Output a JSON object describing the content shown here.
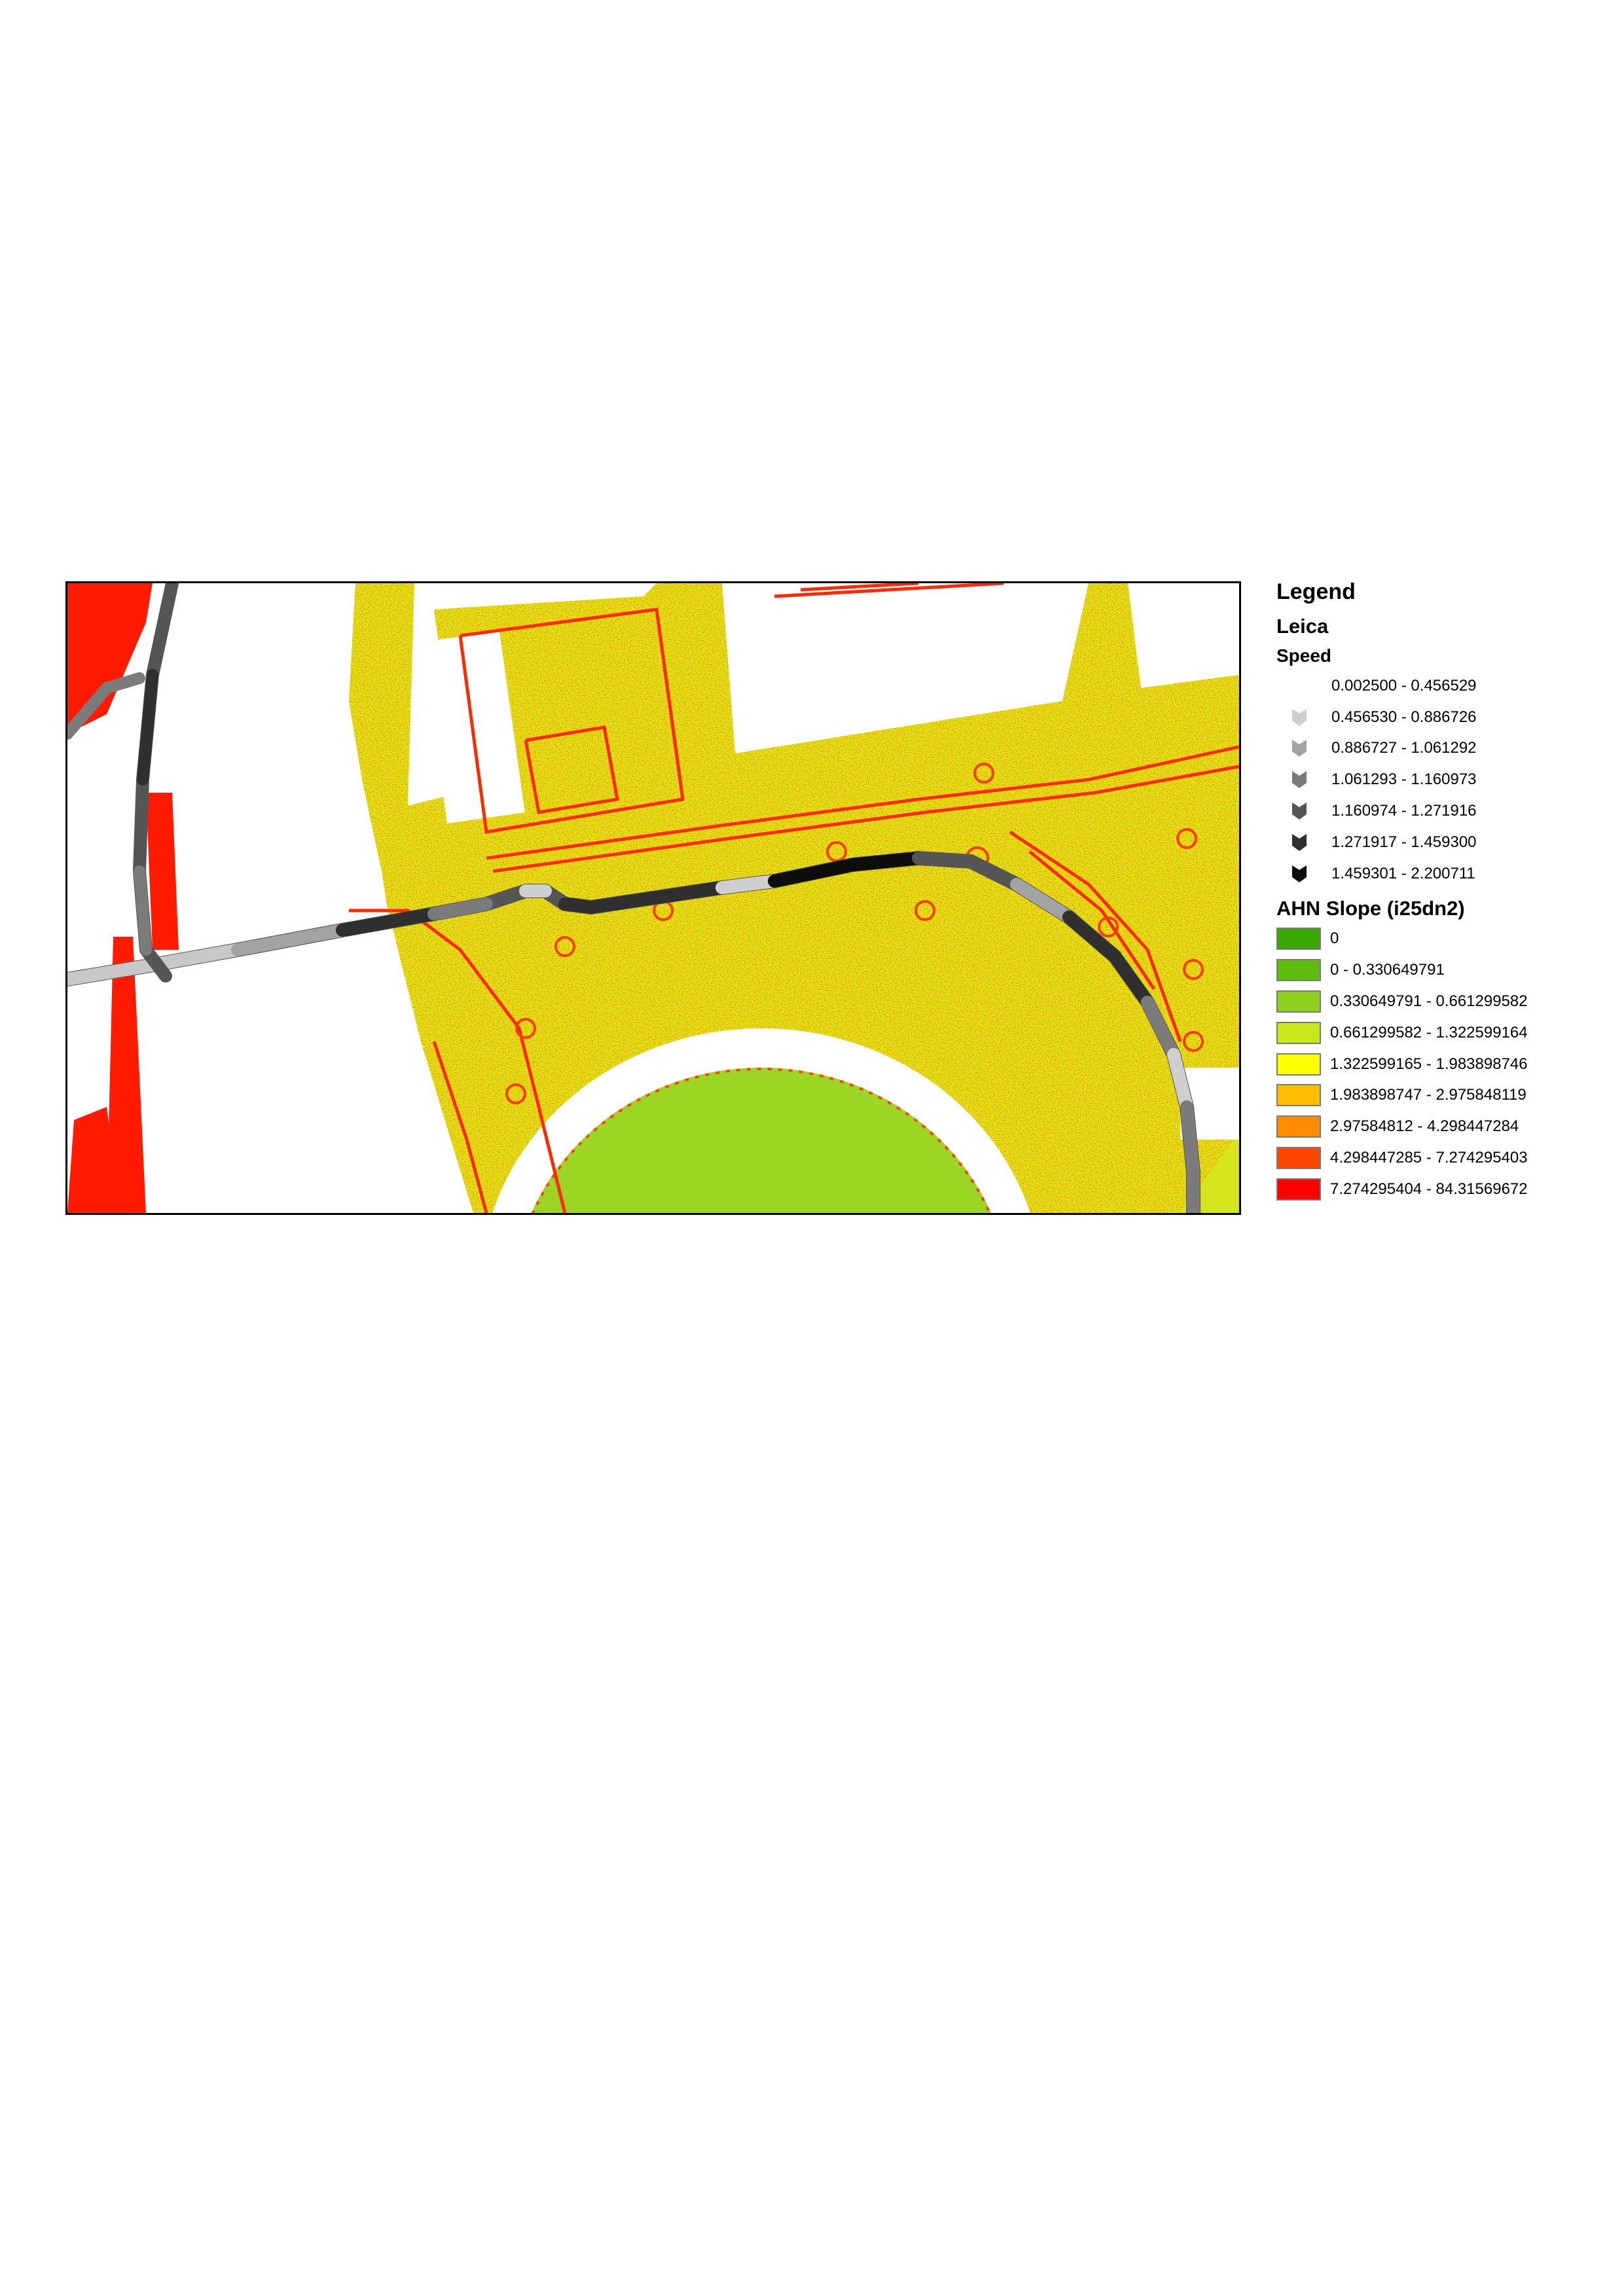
{
  "legend": {
    "title": "Legend",
    "layer_name": "Leica",
    "speed_title": "Speed",
    "speed_classes": [
      {
        "label": "0.002500 - 0.456529",
        "color": "#ffffff"
      },
      {
        "label": "0.456530 - 0.886726",
        "color": "#cfcfcf"
      },
      {
        "label": "0.886727 - 1.061292",
        "color": "#a3a3a3"
      },
      {
        "label": "1.061293 - 1.160973",
        "color": "#7b7b7b"
      },
      {
        "label": "1.160974 - 1.271916",
        "color": "#555555"
      },
      {
        "label": "1.271917 - 1.459300",
        "color": "#2f2f2f"
      },
      {
        "label": "1.459301 - 2.200711",
        "color": "#0d0d0d"
      }
    ],
    "slope_title": "AHN Slope (i25dn2)",
    "slope_classes": [
      {
        "label": "0",
        "color": "#38a800"
      },
      {
        "label": "0 - 0.330649791",
        "color": "#5dbd0a"
      },
      {
        "label": "0.330649791 - 0.661299582",
        "color": "#8fd11c"
      },
      {
        "label": "0.661299582 - 1.322599164",
        "color": "#c8e81a"
      },
      {
        "label": "1.322599165 - 1.983898746",
        "color": "#ffff00"
      },
      {
        "label": "1.983898747 - 2.975848119",
        "color": "#ffbf00"
      },
      {
        "label": "2.97584812 - 4.298447284",
        "color": "#ff8c00"
      },
      {
        "label": "4.298447285 - 7.274295403",
        "color": "#ff4500"
      },
      {
        "label": "7.274295404 - 84.31569672",
        "color": "#ff0000"
      }
    ]
  }
}
